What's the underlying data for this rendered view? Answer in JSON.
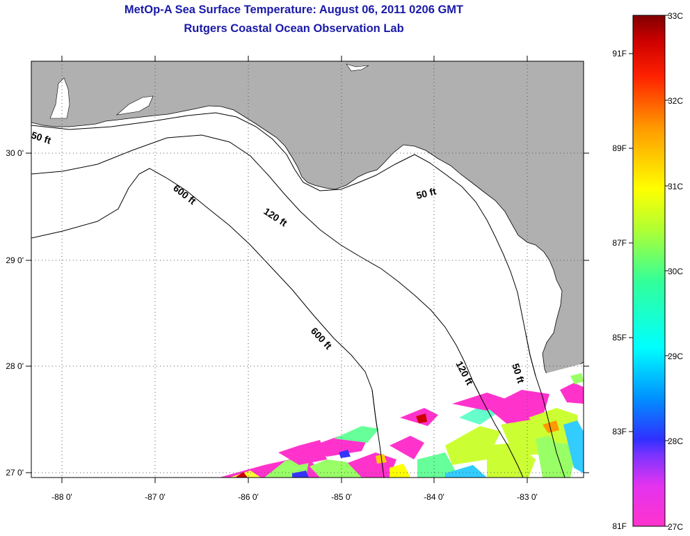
{
  "header": {
    "title": "MetOp-A Sea Surface Temperature:  August 06, 2011 0206 GMT",
    "subtitle": "Rutgers Coastal Ocean Observation Lab"
  },
  "map": {
    "lon_range": [
      -88.35,
      -82.45
    ],
    "lat_range": [
      26.95,
      30.85
    ],
    "lon_ticks": [
      {
        "value": -88,
        "label": "-88 0'"
      },
      {
        "value": -87,
        "label": "-87 0'"
      },
      {
        "value": -86,
        "label": "-86 0'"
      },
      {
        "value": -85,
        "label": "-85 0'"
      },
      {
        "value": -84,
        "label": "-84 0'"
      },
      {
        "value": -83,
        "label": "-83 0'"
      }
    ],
    "lat_ticks": [
      {
        "value": 30,
        "label": "30 0'"
      },
      {
        "value": 29,
        "label": "29 0'"
      },
      {
        "value": 28,
        "label": "28 0'"
      },
      {
        "value": 27,
        "label": "27 0'"
      }
    ],
    "gridlines": "dotted",
    "land_color": "#b0b0b0",
    "ocean_color": "#ffffff",
    "isobath_labels": [
      "50 ft",
      "600 ft",
      "120 ft",
      "50 ft",
      "600 ft",
      "120 ft",
      "50 ft"
    ]
  },
  "colorbar": {
    "fahrenheit_labels": [
      "91F",
      "89F",
      "87F",
      "85F",
      "83F",
      "81F"
    ],
    "celsius_labels": [
      "33C",
      "32C",
      "31C",
      "30C",
      "29C",
      "28C",
      "27C"
    ],
    "celsius_range": [
      27,
      33
    ],
    "colors": [
      "#ff33cc",
      "#cc33ff",
      "#3333ff",
      "#0099ff",
      "#00ffff",
      "#33ff99",
      "#ccff33",
      "#ffff00",
      "#ff9900",
      "#ff3300",
      "#cc0000",
      "#800000"
    ]
  }
}
